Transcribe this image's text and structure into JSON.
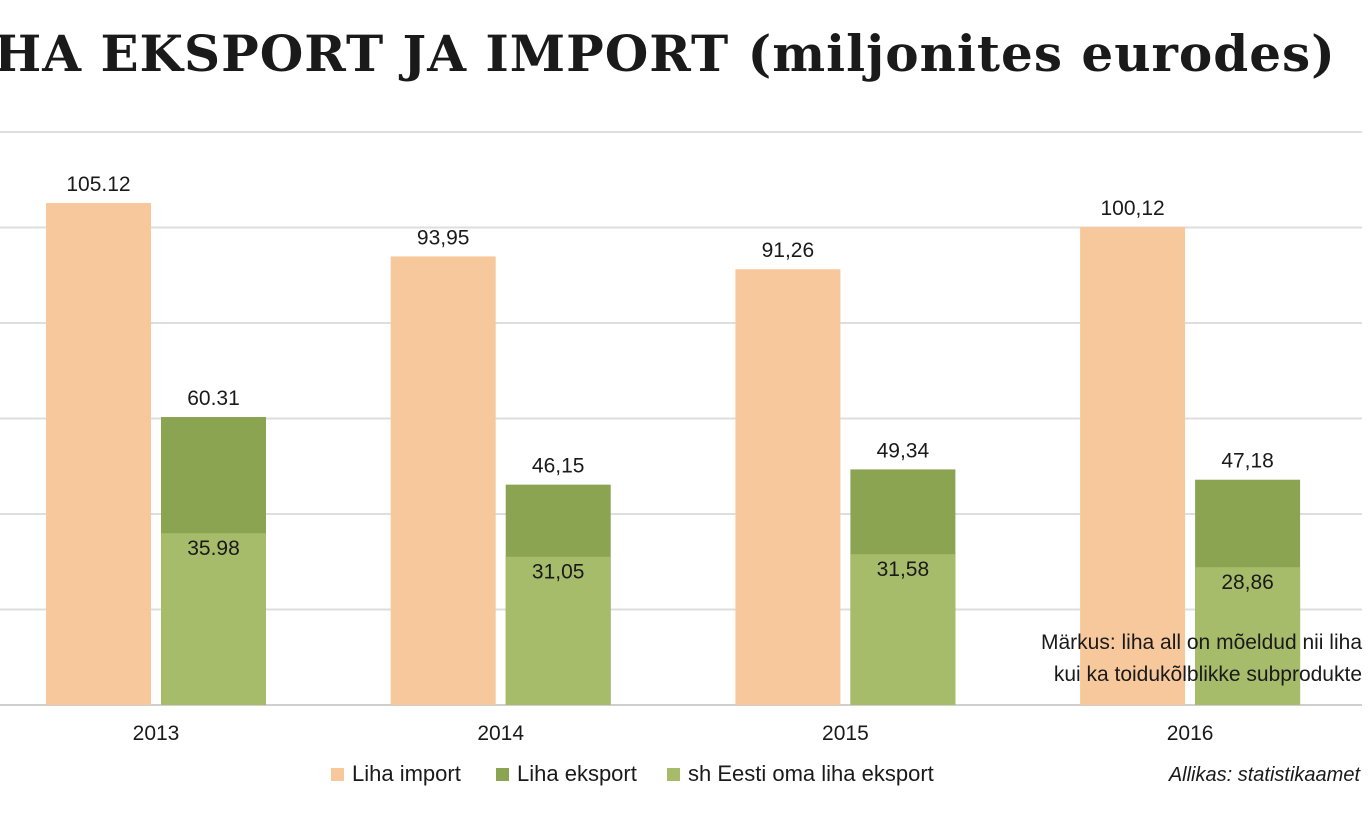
{
  "title": "HA EKSPORT JA IMPORT (miljonites eurodes)",
  "chart_data": {
    "type": "bar",
    "categories": [
      "2013",
      "2014",
      "2015",
      "2016"
    ],
    "series": [
      {
        "name": "Liha import",
        "color": "#f8c89d",
        "values": [
          105.12,
          93.95,
          91.26,
          100.12
        ],
        "labels": [
          "105.12",
          "93,95",
          "91,26",
          "100,12"
        ]
      },
      {
        "name": "Liha eksport",
        "color": "#8aa452",
        "values": [
          60.31,
          46.15,
          49.34,
          47.18
        ],
        "labels": [
          "60.31",
          "46,15",
          "49,34",
          "47,18"
        ]
      },
      {
        "name": "sh Eesti oma liha eksport",
        "color": "#a6bc6a",
        "values": [
          35.98,
          31.05,
          31.58,
          28.86
        ],
        "labels": [
          "35.98",
          "31,05",
          "31,58",
          "28,86"
        ]
      }
    ],
    "ylim": [
      0,
      120
    ],
    "grid": true,
    "legend_position": "bottom"
  },
  "note": {
    "line1": "Märkus: liha all on mõeldud nii liha",
    "line2": "kui ka toidukõlblikke subprodukte"
  },
  "source": "Allikas: statistikaamet"
}
